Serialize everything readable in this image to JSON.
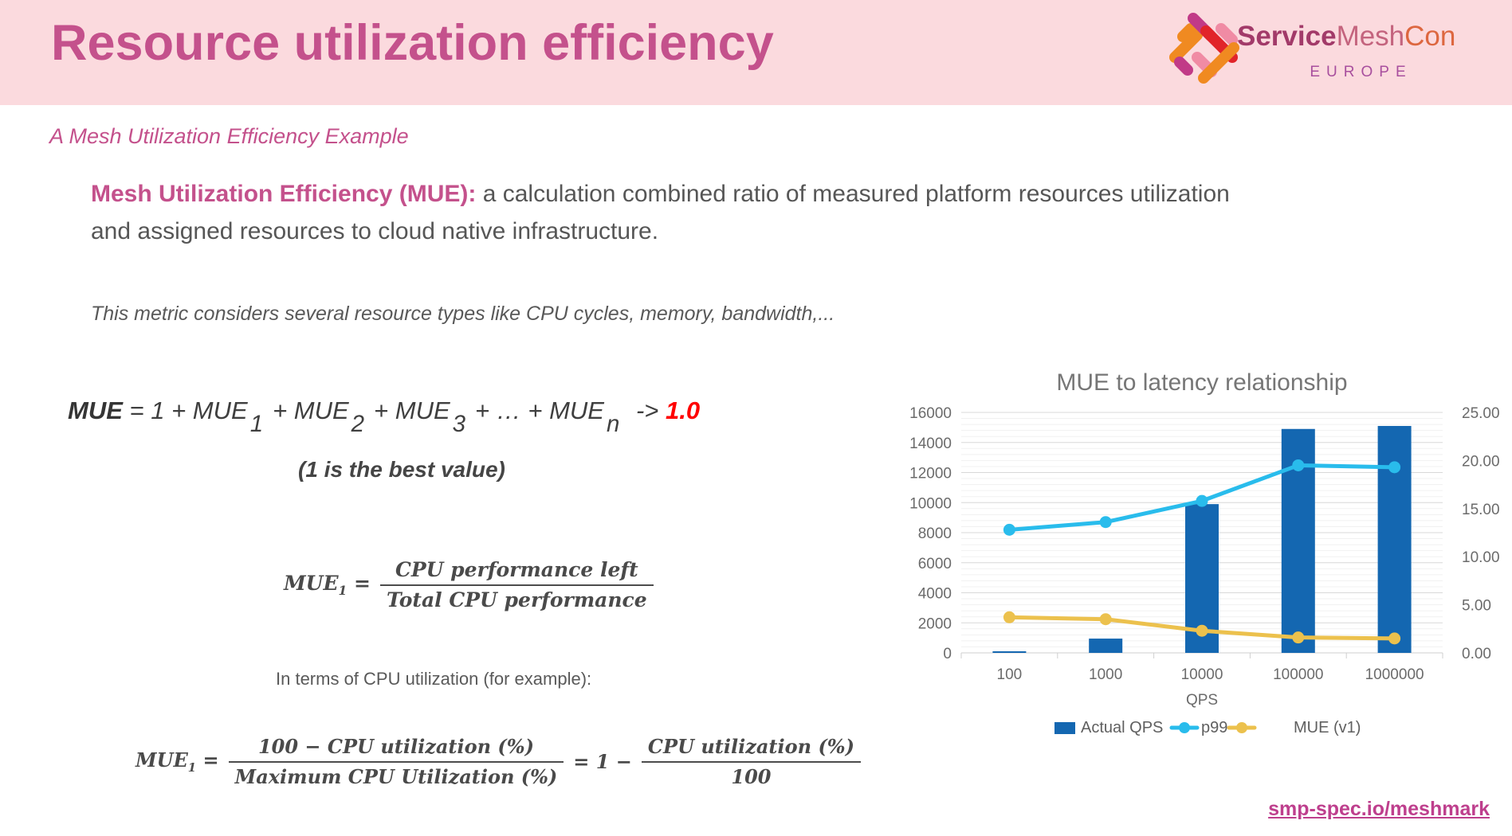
{
  "header": {
    "title": "Resource utilization efficiency"
  },
  "logo": {
    "service": "Service",
    "mesh": "Mesh",
    "con": "Con",
    "region": "EUROPE",
    "palette": {
      "orange": "#f08a21",
      "magenta": "#c13a87",
      "red": "#e1242a",
      "pink": "#f08ba4"
    }
  },
  "subtitle": "A Mesh Utilization Efficiency Example",
  "intro": {
    "lead": "Mesh Utilization Efficiency (MUE):",
    "body": " a calculation combined ratio of measured platform resources utilization and assigned resources to cloud native infrastructure."
  },
  "note": "This metric considers several resource types like CPU cycles, memory, bandwidth,...",
  "formula_sum": {
    "parts": [
      {
        "t": "MUE",
        "cls": "b"
      },
      {
        "t": " = 1 + MUE"
      },
      {
        "t": "1",
        "cls": "sub"
      },
      {
        "t": "+ MUE"
      },
      {
        "t": "2",
        "cls": "sub"
      },
      {
        "t": "+ MUE"
      },
      {
        "t": "3",
        "cls": "sub"
      },
      {
        "t": "+ … + MUE"
      },
      {
        "t": "n",
        "cls": "sub"
      },
      {
        "t": " -> "
      },
      {
        "t": "1.0",
        "cls": "red"
      }
    ]
  },
  "best_value": "(1 is the best value)",
  "formula_cpu": {
    "lhs": "MUE",
    "lhs_sub": "1",
    "eq": "=",
    "num": "CPU performance left",
    "den": "Total CPU performance"
  },
  "in_terms": "In terms of CPU utilization (for example):",
  "formula_util": {
    "lhs": "MUE",
    "lhs_sub": "1",
    "eq": "=",
    "frac1": {
      "num": "100 − CPU utilization (%)",
      "den": "Maximum CPU Utilization (%)"
    },
    "mid": "= 1 −",
    "frac2": {
      "num": "CPU utilization (%)",
      "den": "100"
    }
  },
  "footer_link": "smp-spec.io/meshmark",
  "colors": {
    "accent_pink": "#c4518c",
    "band_pink": "#fbdade",
    "bar_blue": "#1467b1",
    "line_cyan": "#29bcec",
    "line_yellow": "#ecc14d",
    "red_value": "#ff0000"
  },
  "chart_data": {
    "type": "bar+line",
    "title": "MUE to latency relationship",
    "categories": [
      "100",
      "1000",
      "10000",
      "100000",
      "1000000"
    ],
    "xlabel": "QPS",
    "left_axis": {
      "min": 0,
      "max": 16000,
      "step": 2000,
      "minor_step": 400,
      "ticks": [
        "0",
        "2000",
        "4000",
        "6000",
        "8000",
        "10000",
        "12000",
        "14000",
        "16000"
      ]
    },
    "right_axis": {
      "min": 0,
      "max": 25,
      "step": 5,
      "ticks": [
        "0.00",
        "5.00",
        "10.00",
        "15.00",
        "20.00",
        "25.00"
      ]
    },
    "series": [
      {
        "name": "Actual QPS",
        "type": "bar",
        "axis": "left",
        "color": "#1467b1",
        "values": [
          100,
          950,
          9900,
          14900,
          15100
        ]
      },
      {
        "name": "p99",
        "type": "line",
        "axis": "right",
        "color": "#29bcec",
        "values": [
          12.8,
          13.6,
          15.8,
          19.5,
          19.3
        ]
      },
      {
        "name": "MUE (v1)",
        "type": "line",
        "axis": "right",
        "color": "#ecc14d",
        "values": [
          3.7,
          3.5,
          2.3,
          1.6,
          1.5
        ]
      }
    ],
    "legend": [
      "Actual QPS",
      "p99",
      "MUE (v1)"
    ],
    "legend_position": "bottom",
    "grid": true
  }
}
